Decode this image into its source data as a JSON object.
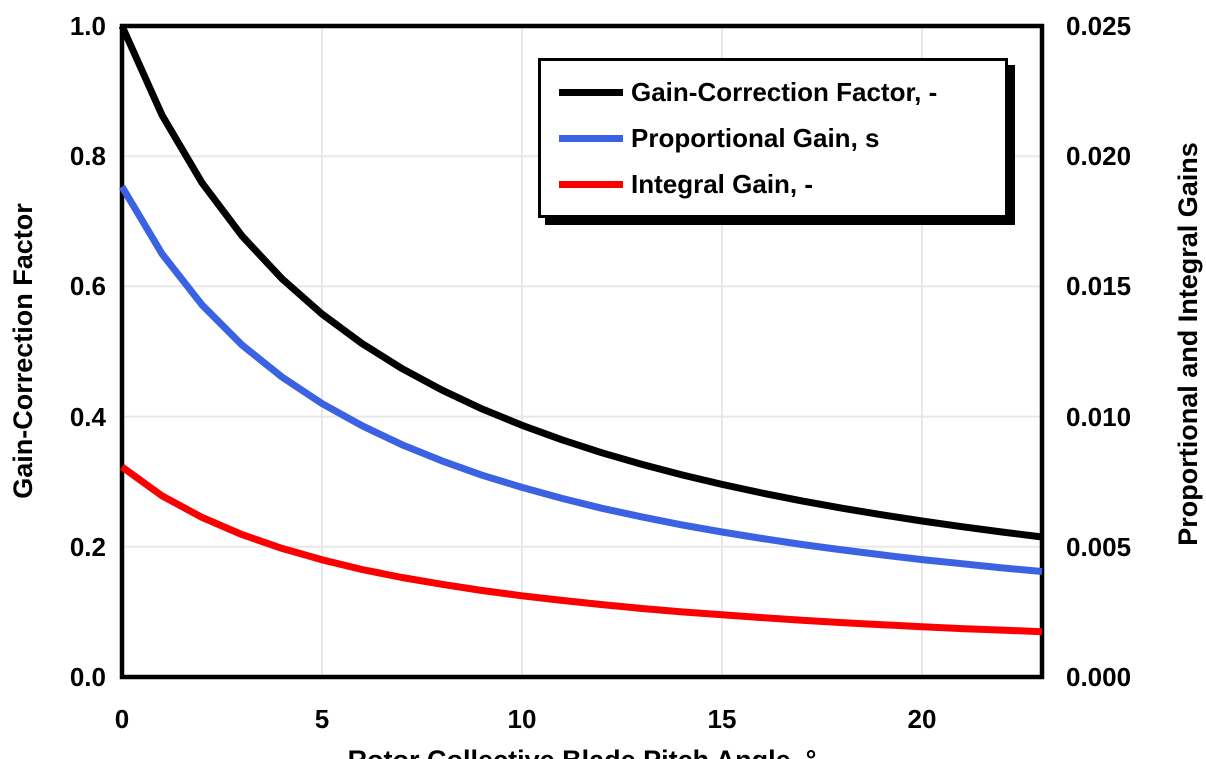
{
  "chart_data": {
    "type": "line",
    "title": "",
    "xlabel": "Rotor Collective Blade Pitch Angle, °",
    "ylabel_left": "Gain-Correction Factor",
    "ylabel_right": "Proportional and Integral Gains",
    "xlim": [
      0,
      23
    ],
    "ylim_left": [
      0.0,
      1.0
    ],
    "ylim_right": [
      0.0,
      0.025
    ],
    "xticks": [
      0,
      5,
      10,
      15,
      20
    ],
    "xtick_labels": [
      "0",
      "5",
      "10",
      "15",
      "20"
    ],
    "ytick_labels_left": [
      "1.0",
      "0.8",
      "0.6",
      "0.4",
      "0.2",
      "0.0"
    ],
    "ytick_labels_right": [
      "0.025",
      "0.020",
      "0.015",
      "0.010",
      "0.005",
      "0.000"
    ],
    "grid": true,
    "legend_position": "upper-center-inside",
    "x": [
      0,
      1,
      2,
      3,
      4,
      5,
      6,
      7,
      8,
      9,
      10,
      11,
      12,
      13,
      14,
      15,
      16,
      17,
      18,
      19,
      20,
      21,
      22,
      23
    ],
    "series": [
      {
        "name": "Gain-Correction Factor, -",
        "axis": "left",
        "color": "#000000",
        "values": [
          1.0,
          0.8631,
          0.7591,
          0.6775,
          0.6117,
          0.5576,
          0.5123,
          0.4738,
          0.4407,
          0.4119,
          0.3866,
          0.3643,
          0.3444,
          0.3265,
          0.3104,
          0.2959,
          0.2826,
          0.2705,
          0.2593,
          0.2491,
          0.2396,
          0.2308,
          0.2227,
          0.2151
        ]
      },
      {
        "name": "Proportional Gain, s",
        "axis": "right",
        "color": "#3A62E3",
        "values": [
          0.01883,
          0.01625,
          0.01429,
          0.01275,
          0.01152,
          0.0105,
          0.00965,
          0.00892,
          0.0083,
          0.00775,
          0.00728,
          0.00686,
          0.00648,
          0.00615,
          0.00584,
          0.00557,
          0.00532,
          0.00509,
          0.00488,
          0.00469,
          0.00451,
          0.00435,
          0.00419,
          0.00405
        ]
      },
      {
        "name": "Integral Gain, -",
        "axis": "right",
        "color": "#FB0000",
        "values": [
          0.00807,
          0.00696,
          0.00613,
          0.00547,
          0.00494,
          0.0045,
          0.00413,
          0.00382,
          0.00356,
          0.00332,
          0.00312,
          0.00294,
          0.00278,
          0.00263,
          0.0025,
          0.00239,
          0.00228,
          0.00218,
          0.00209,
          0.00201,
          0.00193,
          0.00186,
          0.0018,
          0.00174
        ]
      }
    ],
    "style": {
      "gridline_color": "#E8E8E8",
      "axis_color": "#000000",
      "background": "#FFFFFF",
      "curve_width": 7,
      "border_width": 4.5
    }
  }
}
